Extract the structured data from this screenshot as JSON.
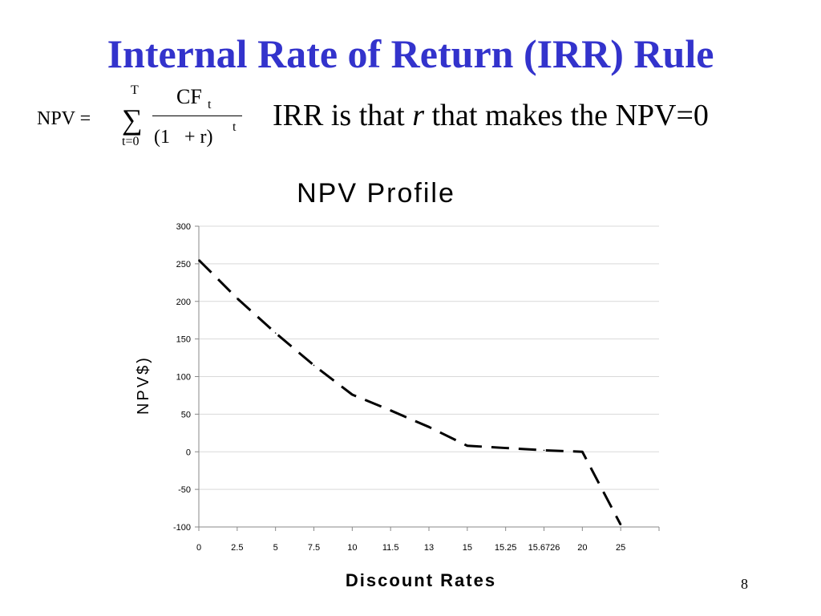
{
  "slide": {
    "title": "Internal Rate of Return (IRR) Rule",
    "page_number": "8",
    "title_color": "#3333cc"
  },
  "formula": {
    "lhs": "NPV =",
    "sigma": "∑",
    "upper": "T",
    "lower": "t=0",
    "numerator": "CF",
    "numerator_sub": "t",
    "denominator": "(1   + r)",
    "denominator_exp": "t"
  },
  "statement": {
    "part1": "IRR is that ",
    "variable": "r",
    "part2": " that makes the NPV=0"
  },
  "chart_data": {
    "type": "line",
    "title": "NPV Profile",
    "xlabel": "Discount Rates",
    "ylabel": "NPV$)",
    "categories": [
      "0",
      "2.5",
      "5",
      "7.5",
      "10",
      "11.5",
      "13",
      "15",
      "15.25",
      "15.6726",
      "20",
      "25"
    ],
    "ylim": [
      -100,
      300
    ],
    "yticks": [
      -100,
      -50,
      0,
      50,
      100,
      150,
      200,
      250,
      300
    ],
    "grid": true,
    "line_style": "dashed",
    "line_color": "#000000",
    "series": [
      {
        "values": [
          255,
          204,
          158,
          115,
          76,
          55,
          33,
          8,
          5,
          2,
          0,
          -97
        ]
      }
    ]
  }
}
